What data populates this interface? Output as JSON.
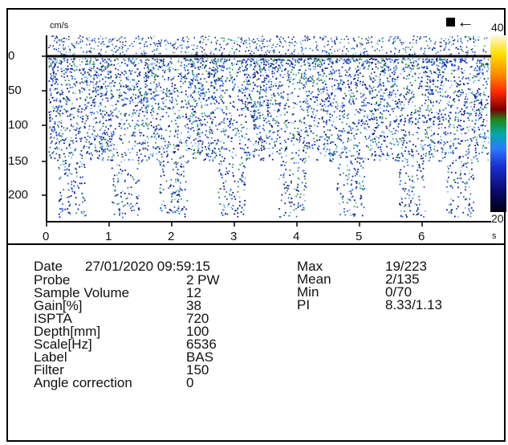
{
  "display": {
    "unit_top": "cm/s",
    "unit_x": "s",
    "velocity_labels": [
      "0",
      "50",
      "100",
      "150",
      "200"
    ],
    "time_labels": [
      "0",
      "1",
      "2",
      "3",
      "4",
      "5",
      "6"
    ],
    "colorbar_top": "40",
    "colorbar_bottom": "20",
    "stop_icon": "stop-square-icon",
    "back_icon": "arrow-left-icon",
    "back_glyph": "←",
    "colors": {
      "speckle_dark": "#101a8c",
      "speckle_mid": "#2c5fd8",
      "speckle_light": "#7bb8f2",
      "speckle_green": "#2f9a4e",
      "baseline": "#000000"
    }
  },
  "info": {
    "date_label": "Date",
    "date_value": "27/01/2020 09:59:15",
    "params": [
      {
        "label": "Probe",
        "value": "2 PW"
      },
      {
        "label": "Sample Volume",
        "value": "12"
      },
      {
        "label": "Gain[%]",
        "value": "38"
      },
      {
        "label": "ISPTA",
        "value": "720"
      },
      {
        "label": "Depth[mm]",
        "value": "100"
      },
      {
        "label": "Scale[Hz]",
        "value": "6536"
      },
      {
        "label": "Label",
        "value": "BAS"
      },
      {
        "label": "Filter",
        "value": "150"
      },
      {
        "label": "Angle correction",
        "value": "0"
      }
    ],
    "stats": [
      {
        "label": "Max",
        "value": "19/223"
      },
      {
        "label": "Mean",
        "value": "2/135"
      },
      {
        "label": "Min",
        "value": "0/70"
      },
      {
        "label": "PI",
        "value": "8.33/1.13"
      }
    ]
  }
}
